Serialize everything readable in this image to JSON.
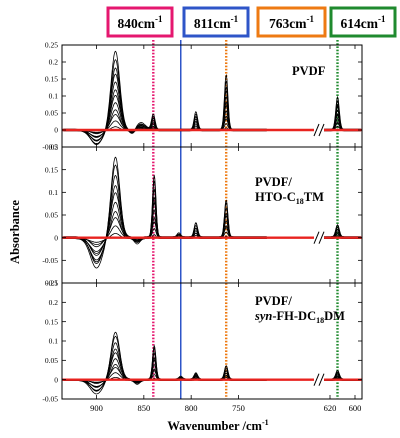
{
  "chart_data": {
    "type": "line",
    "xlabel": "Wavenumber /cm",
    "xlabel_sup": "-1",
    "ylabel": "Absorbance",
    "x_axis": {
      "reversed": true,
      "broken": true,
      "ticks_left": [
        "900",
        "850",
        "800",
        "750"
      ],
      "ticks_right": [
        "620",
        "600"
      ]
    },
    "markers": [
      {
        "label": "840cm",
        "sup": "-1",
        "x": 840,
        "color": "#e5176f",
        "style": "dotted"
      },
      {
        "label": "811cm",
        "sup": "-1",
        "x": 811,
        "color": "#2e55c8",
        "style": "solid"
      },
      {
        "label": "763cm",
        "sup": "-1",
        "x": 763,
        "color": "#ee7a12",
        "style": "dotted"
      },
      {
        "label": "614cm",
        "sup": "-1",
        "x": 614,
        "color": "#1f8a2e",
        "style": "dotted"
      }
    ],
    "panels": [
      {
        "label_lines": [
          {
            "text": "PVDF"
          }
        ],
        "yticks": [
          "0.25",
          "0.2",
          "0.15",
          "0.1",
          "0.05",
          "0",
          "-0.05"
        ],
        "ylim": [
          -0.05,
          0.25
        ],
        "curve_count": 12,
        "peaks": [
          {
            "x": 880,
            "max": 0.23
          },
          {
            "x": 853,
            "max": 0.02
          },
          {
            "x": 840,
            "max": 0.045
          },
          {
            "x": 795,
            "max": 0.052
          },
          {
            "x": 763,
            "max": 0.16
          },
          {
            "x": 614,
            "max": 0.095
          }
        ],
        "dips": [
          {
            "x": 900,
            "min": -0.045
          },
          {
            "x": 862,
            "min": -0.012
          }
        ]
      },
      {
        "label_lines": [
          {
            "text": "PVDF/"
          },
          {
            "text": "HTO-C",
            "sub": "18",
            "after": "TM"
          }
        ],
        "yticks": [
          "0.2",
          "0.15",
          "0.1",
          "0.05",
          "0",
          "-0.05",
          "-0.1"
        ],
        "ylim": [
          -0.1,
          0.2
        ],
        "curve_count": 10,
        "peaks": [
          {
            "x": 880,
            "max": 0.18
          },
          {
            "x": 839,
            "max": 0.14
          },
          {
            "x": 813,
            "max": 0.01
          },
          {
            "x": 795,
            "max": 0.035
          },
          {
            "x": 763,
            "max": 0.085
          },
          {
            "x": 614,
            "max": 0.03
          }
        ],
        "dips": [
          {
            "x": 900,
            "min": -0.065
          },
          {
            "x": 857,
            "min": -0.012
          }
        ]
      },
      {
        "label_lines": [
          {
            "text": "PVDF/"
          },
          {
            "italic": "syn",
            "text": "-FH-DC",
            "sub": "18",
            "after": "DM"
          }
        ],
        "yticks": [
          "0.25",
          "0.2",
          "0.15",
          "0.1",
          "0.05",
          "0",
          "-0.05"
        ],
        "ylim": [
          -0.05,
          0.25
        ],
        "curve_count": 10,
        "peaks": [
          {
            "x": 880,
            "max": 0.125
          },
          {
            "x": 839,
            "max": 0.09
          },
          {
            "x": 811,
            "max": 0.008
          },
          {
            "x": 795,
            "max": 0.018
          },
          {
            "x": 763,
            "max": 0.038
          },
          {
            "x": 614,
            "max": 0.025
          }
        ],
        "dips": [
          {
            "x": 900,
            "min": -0.035
          },
          {
            "x": 857,
            "min": -0.01
          }
        ]
      }
    ]
  }
}
